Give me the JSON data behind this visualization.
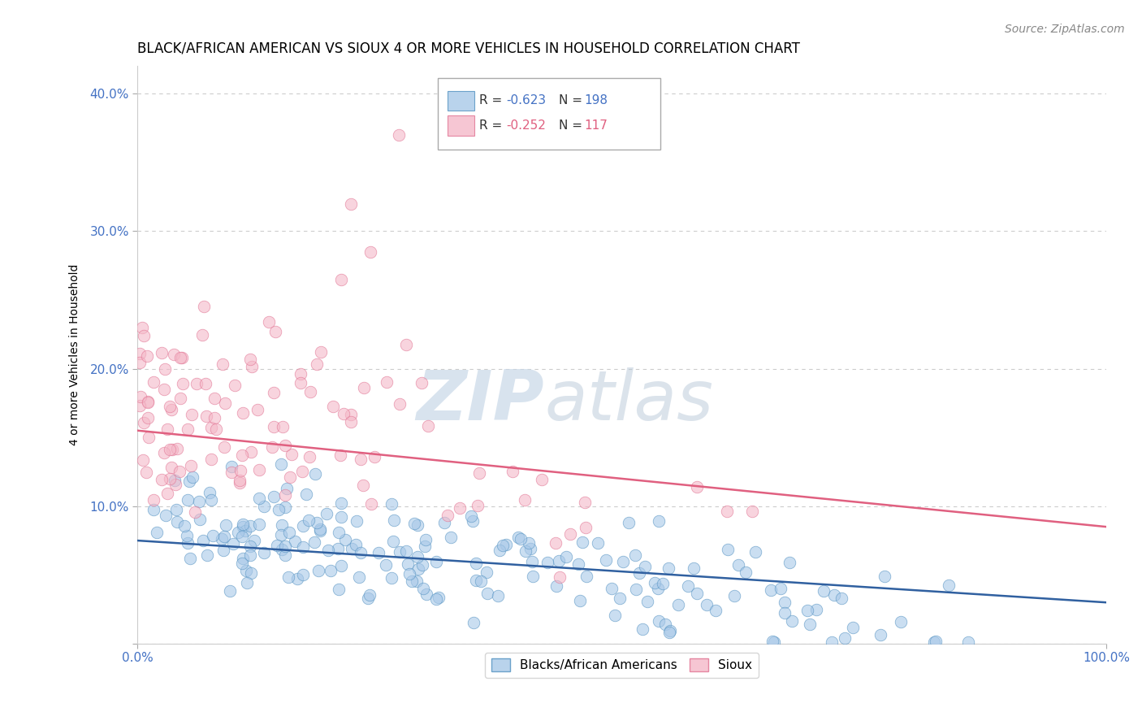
{
  "title": "BLACK/AFRICAN AMERICAN VS SIOUX 4 OR MORE VEHICLES IN HOUSEHOLD CORRELATION CHART",
  "source": "Source: ZipAtlas.com",
  "ylabel": "4 or more Vehicles in Household",
  "legend_blue_label": "Blacks/African Americans",
  "legend_pink_label": "Sioux",
  "watermark_zip": "ZIP",
  "watermark_atlas": "atlas",
  "blue_color": "#a8c8e8",
  "pink_color": "#f4b8c8",
  "blue_edge_color": "#5090c0",
  "pink_edge_color": "#e07090",
  "blue_line_color": "#3060a0",
  "pink_line_color": "#e06080",
  "r_blue": -0.623,
  "n_blue": 198,
  "r_pink": -0.252,
  "n_pink": 117,
  "blue_r_text_color": "#4472c4",
  "pink_r_text_color": "#e06080",
  "ytick_color": "#4472c4",
  "xtick_color": "#4472c4",
  "xmin": 0.0,
  "xmax": 1.0,
  "ymin": 0.0,
  "ymax": 0.42,
  "title_fontsize": 12,
  "axis_label_fontsize": 10,
  "tick_fontsize": 11,
  "source_fontsize": 10,
  "legend_fontsize": 11
}
